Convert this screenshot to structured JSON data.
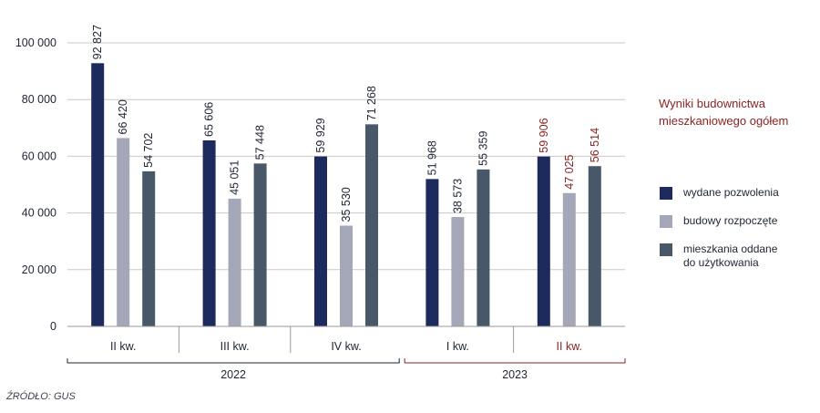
{
  "chart_data": {
    "type": "bar",
    "title": "Wyniki budownictwa mieszkaniowego ogółem",
    "categories": [
      "II kw.",
      "III kw.",
      "IV kw.",
      "I kw.",
      "II kw."
    ],
    "years": [
      {
        "label": "2022",
        "categories": [
          0,
          1,
          2
        ],
        "color": "#1e2433"
      },
      {
        "label": "2023",
        "categories": [
          3,
          4
        ],
        "color": "#8b2323"
      }
    ],
    "series": [
      {
        "name": "wydane pozwolenia",
        "color": "#1d2a5e",
        "values": [
          92827,
          65606,
          59929,
          51968,
          59906
        ],
        "labels": [
          "92 827",
          "65 606",
          "59 929",
          "51 968",
          "59 906"
        ]
      },
      {
        "name": "budowy rozpoczęte",
        "color": "#a3a7b8",
        "values": [
          66420,
          45051,
          35530,
          38573,
          47025
        ],
        "labels": [
          "66 420",
          "45 051",
          "35 530",
          "38 573",
          "47 025"
        ]
      },
      {
        "name": "mieszkania oddane do użytkowania",
        "color": "#485868",
        "values": [
          54702,
          57448,
          71268,
          55359,
          56514
        ],
        "labels": [
          "54 702",
          "57 448",
          "71 268",
          "55 359",
          "56 514"
        ]
      }
    ],
    "highlight_color": "#8b2323",
    "highlight_categories": [
      4
    ],
    "yticks": [
      0,
      20000,
      40000,
      60000,
      80000,
      100000
    ],
    "ytick_labels": [
      "0",
      "20 000",
      "40 000",
      "60 000",
      "80 000",
      "100 000"
    ],
    "ylim": [
      0,
      100000
    ],
    "grid": true,
    "legend_position": "right"
  },
  "legend": {
    "items": [
      {
        "label": "wydane pozwolenia",
        "color": "#1d2a5e"
      },
      {
        "label": "budowy rozpoczęte",
        "color": "#a3a7b8"
      },
      {
        "label": "mieszkania oddane\ndo użytkowania",
        "color": "#485868"
      }
    ]
  },
  "title_lines": [
    "Wyniki budownictwa",
    "mieszkaniowego ogółem"
  ],
  "source": "ŹRÓDŁO: GUS"
}
